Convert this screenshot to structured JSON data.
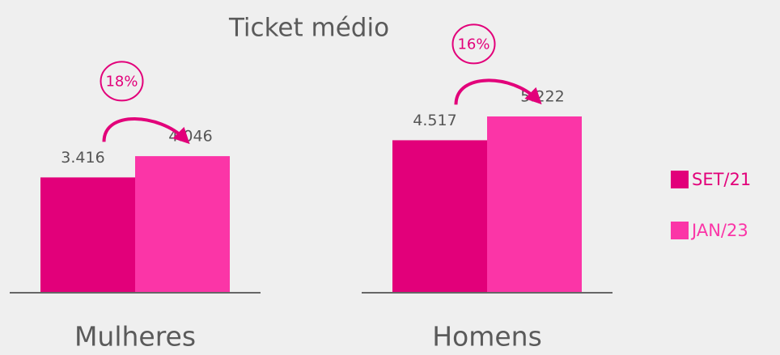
{
  "chart_data": {
    "type": "bar",
    "title": "Ticket médio",
    "categories": [
      "Mulheres",
      "Homens"
    ],
    "series": [
      {
        "name": "SET/21",
        "color": "#e2007a",
        "values": [
          3416,
          4517
        ],
        "value_labels": [
          "3.416",
          "4.517"
        ]
      },
      {
        "name": "JAN/23",
        "color": "#fb35a7",
        "values": [
          4046,
          5222
        ],
        "value_labels": [
          "4.046",
          "5.222"
        ]
      }
    ],
    "annotations": [
      "18%",
      "16%"
    ],
    "legend": "right"
  }
}
